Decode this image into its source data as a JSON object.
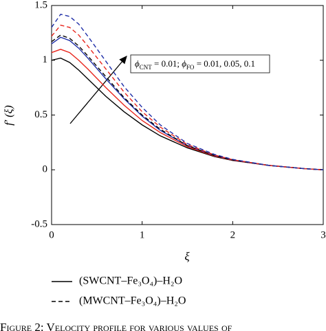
{
  "chart_data": {
    "type": "line",
    "xlabel": "ξ",
    "ylabel": "f′ (ξ)",
    "x": [
      0,
      0.1,
      0.2,
      0.3,
      0.4,
      0.6,
      0.8,
      1.0,
      1.2,
      1.5,
      1.8,
      2.0,
      2.4,
      2.8,
      3.0
    ],
    "series": [
      {
        "color": "#000000",
        "dash": false,
        "values": [
          1.0,
          1.02,
          0.98,
          0.91,
          0.83,
          0.67,
          0.53,
          0.41,
          0.31,
          0.2,
          0.12,
          0.085,
          0.04,
          0.01,
          0
        ]
      },
      {
        "color": "#e8251c",
        "dash": false,
        "values": [
          1.07,
          1.1,
          1.07,
          1.0,
          0.92,
          0.75,
          0.59,
          0.45,
          0.34,
          0.21,
          0.125,
          0.087,
          0.04,
          0.01,
          0
        ]
      },
      {
        "color": "#1f2fa8",
        "dash": false,
        "values": [
          1.15,
          1.21,
          1.18,
          1.11,
          1.02,
          0.83,
          0.65,
          0.49,
          0.36,
          0.22,
          0.13,
          0.09,
          0.04,
          0.01,
          0
        ]
      },
      {
        "color": "#000000",
        "dash": true,
        "values": [
          1.17,
          1.23,
          1.2,
          1.13,
          1.04,
          0.85,
          0.66,
          0.5,
          0.37,
          0.22,
          0.13,
          0.09,
          0.04,
          0.01,
          0
        ]
      },
      {
        "color": "#e8251c",
        "dash": true,
        "values": [
          1.22,
          1.32,
          1.3,
          1.23,
          1.13,
          0.92,
          0.71,
          0.53,
          0.39,
          0.23,
          0.135,
          0.092,
          0.04,
          0.01,
          0
        ]
      },
      {
        "color": "#1f2fa8",
        "dash": true,
        "values": [
          1.3,
          1.42,
          1.4,
          1.33,
          1.22,
          0.99,
          0.76,
          0.57,
          0.41,
          0.24,
          0.14,
          0.095,
          0.04,
          0.01,
          0
        ]
      }
    ],
    "legend": [
      {
        "label": "(SWCNT–Fe₃O₄)–H₂O",
        "dash": false
      },
      {
        "label": "(MWCNT–Fe₃O₄)–H₂O",
        "dash": true
      }
    ],
    "annotation": [
      "ϕ",
      "CNT",
      " = 0.01; ϕ",
      "FO",
      " = 0.01, 0.05, 0.1"
    ],
    "caption": "Figure 2: Velocity profile for various values of",
    "xlim": [
      0,
      3
    ],
    "xticks": [
      0,
      1,
      2,
      3
    ],
    "ylim": [
      -0.5,
      1.5
    ],
    "yticks": [
      -0.5,
      0,
      0.5,
      1,
      1.5
    ]
  }
}
